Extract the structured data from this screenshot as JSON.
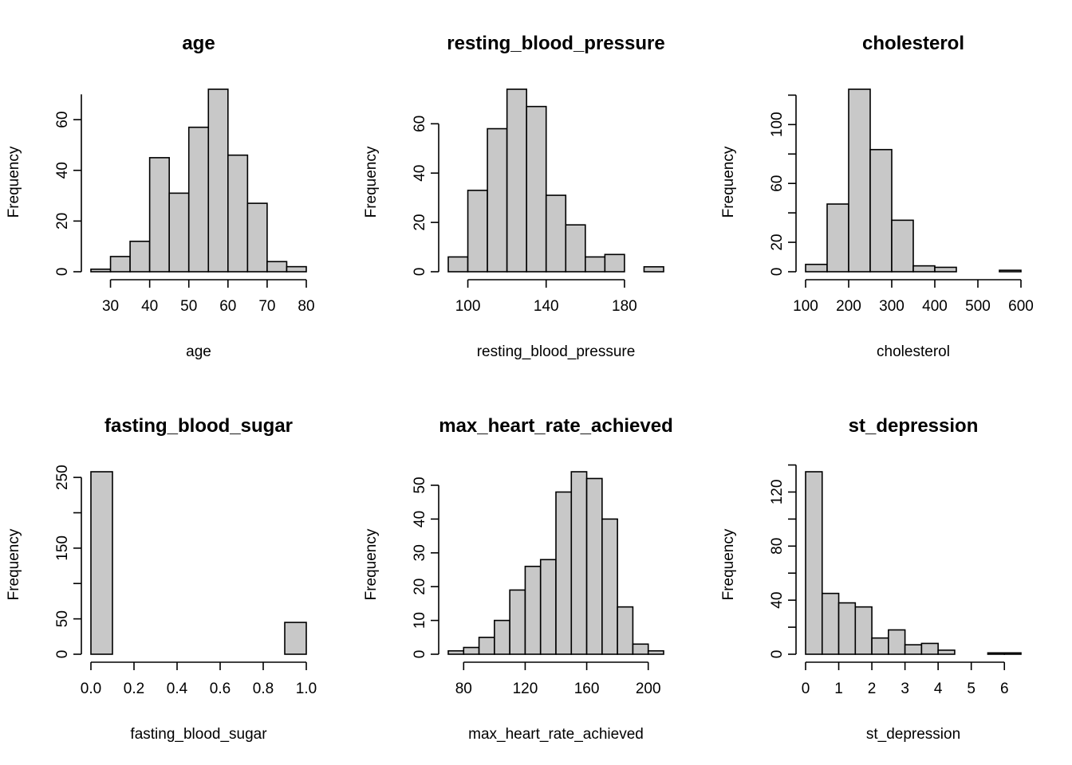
{
  "chart_data": [
    {
      "type": "bar",
      "title": "age",
      "xlabel": "age",
      "ylabel": "Frequency",
      "bin_edges": [
        25,
        30,
        35,
        40,
        45,
        50,
        55,
        60,
        65,
        70,
        75,
        80
      ],
      "values": [
        1,
        6,
        12,
        45,
        31,
        57,
        72,
        46,
        27,
        4,
        2
      ],
      "xticks": [
        30,
        40,
        50,
        60,
        70,
        80
      ],
      "xtick_labels": [
        "30",
        "40",
        "50",
        "60",
        "70",
        "80"
      ],
      "yticks": [
        0,
        20,
        40,
        60
      ],
      "ytick_labels": [
        "0",
        "20",
        "40",
        "60"
      ],
      "xlim": [
        25,
        80
      ],
      "ylim": [
        0,
        72
      ],
      "yaxis_top": 70,
      "bar_color": "#c8c8c8"
    },
    {
      "type": "bar",
      "title": "resting_blood_pressure",
      "xlabel": "resting_blood_pressure",
      "ylabel": "Frequency",
      "bin_edges": [
        90,
        100,
        110,
        120,
        130,
        140,
        150,
        160,
        170,
        180,
        190,
        200
      ],
      "values": [
        6,
        33,
        58,
        74,
        67,
        31,
        19,
        6,
        7,
        0,
        2
      ],
      "xticks": [
        100,
        140,
        180
      ],
      "xtick_labels": [
        "100",
        "140",
        "180"
      ],
      "yticks": [
        0,
        20,
        40,
        60
      ],
      "ytick_labels": [
        "0",
        "20",
        "40",
        "60"
      ],
      "xlim": [
        90,
        200
      ],
      "ylim": [
        0,
        74
      ],
      "bar_color": "#c8c8c8"
    },
    {
      "type": "bar",
      "title": "cholesterol",
      "xlabel": "cholesterol",
      "ylabel": "Frequency",
      "bin_edges": [
        100,
        150,
        200,
        250,
        300,
        350,
        400,
        450,
        500,
        550,
        600
      ],
      "values": [
        5,
        46,
        124,
        83,
        35,
        4,
        3,
        0,
        0,
        1
      ],
      "xticks": [
        100,
        200,
        300,
        400,
        500,
        600
      ],
      "xtick_labels": [
        "100",
        "200",
        "300",
        "400",
        "500",
        "600"
      ],
      "yticks": [
        0,
        20,
        60,
        100
      ],
      "ytick_labels": [
        "0",
        "20",
        "60",
        "100"
      ],
      "yaxis_ticks": [
        0,
        20,
        40,
        60,
        80,
        100,
        120
      ],
      "xlim": [
        100,
        600
      ],
      "ylim": [
        0,
        124
      ],
      "yaxis_top": 120,
      "bar_color": "#c8c8c8"
    },
    {
      "type": "bar",
      "title": "fasting_blood_sugar",
      "xlabel": "fasting_blood_sugar",
      "ylabel": "Frequency",
      "bin_edges": [
        0.0,
        0.1,
        0.2,
        0.3,
        0.4,
        0.5,
        0.6,
        0.7,
        0.8,
        0.9,
        1.0
      ],
      "values": [
        258,
        0,
        0,
        0,
        0,
        0,
        0,
        0,
        0,
        45
      ],
      "xticks": [
        0.0,
        0.2,
        0.4,
        0.6,
        0.8,
        1.0
      ],
      "xtick_labels": [
        "0.0",
        "0.2",
        "0.4",
        "0.6",
        "0.8",
        "1.0"
      ],
      "yticks": [
        0,
        50,
        150,
        250
      ],
      "ytick_labels": [
        "0",
        "50",
        "150",
        "250"
      ],
      "yaxis_ticks": [
        0,
        50,
        100,
        150,
        200,
        250
      ],
      "xlim": [
        0,
        1
      ],
      "ylim": [
        0,
        258
      ],
      "bar_color": "#c8c8c8"
    },
    {
      "type": "bar",
      "title": "max_heart_rate_achieved",
      "xlabel": "max_heart_rate_achieved",
      "ylabel": "Frequency",
      "bin_edges": [
        70,
        80,
        90,
        100,
        110,
        120,
        130,
        140,
        150,
        160,
        170,
        180,
        190,
        200,
        210
      ],
      "values": [
        1,
        2,
        5,
        10,
        19,
        26,
        28,
        48,
        54,
        52,
        40,
        14,
        3,
        1
      ],
      "xticks": [
        80,
        120,
        160,
        200
      ],
      "xtick_labels": [
        "80",
        "120",
        "160",
        "200"
      ],
      "yticks": [
        0,
        10,
        20,
        30,
        40,
        50
      ],
      "ytick_labels": [
        "0",
        "10",
        "20",
        "30",
        "40",
        "50"
      ],
      "xlim": [
        70,
        210
      ],
      "ylim": [
        0,
        54
      ],
      "bar_color": "#c8c8c8"
    },
    {
      "type": "bar",
      "title": "st_depression",
      "xlabel": "st_depression",
      "ylabel": "Frequency",
      "bin_edges": [
        0,
        0.5,
        1,
        1.5,
        2,
        2.5,
        3,
        3.5,
        4,
        4.5,
        5,
        5.5,
        6,
        6.5
      ],
      "values": [
        135,
        45,
        38,
        35,
        12,
        18,
        7,
        8,
        3,
        0,
        0,
        1,
        1
      ],
      "xticks": [
        0,
        1,
        2,
        3,
        4,
        5,
        6
      ],
      "xtick_labels": [
        "0",
        "1",
        "2",
        "3",
        "4",
        "5",
        "6"
      ],
      "yticks": [
        0,
        40,
        80,
        120
      ],
      "ytick_labels": [
        "0",
        "40",
        "80",
        "120"
      ],
      "yaxis_ticks": [
        0,
        20,
        40,
        60,
        80,
        100,
        120,
        140
      ],
      "xlim": [
        0,
        6.5
      ],
      "ylim": [
        0,
        135
      ],
      "yaxis_top": 140,
      "bar_color": "#c8c8c8"
    }
  ]
}
